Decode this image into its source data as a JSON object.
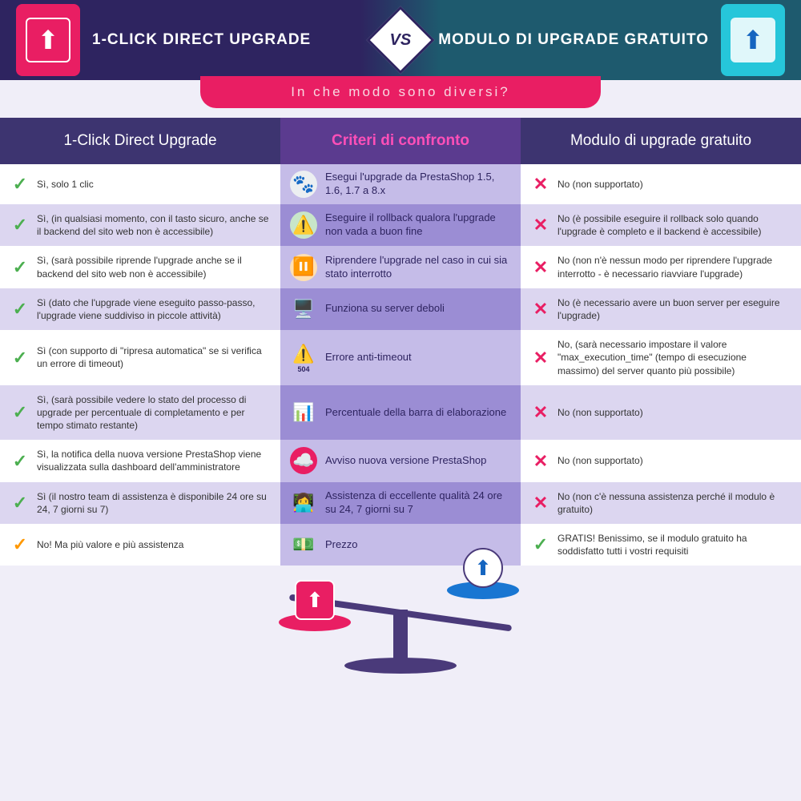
{
  "header": {
    "left_title": "1-CLICK DIRECT UPGRADE",
    "right_title": "MODULO DI UPGRADE GRATUITO",
    "vs": "VS"
  },
  "subtitle": "In che modo sono diversi?",
  "columns": {
    "left": "1-Click Direct Upgrade",
    "mid": "Criteri di confronto",
    "right": "Modulo di upgrade gratuito"
  },
  "rows": [
    {
      "left_icon": "check",
      "left": "Sì, solo 1 clic",
      "crit_emoji": "🐾",
      "crit_bg": "#eceff1",
      "crit": "Esegui l'upgrade da PrestaShop 1.5, 1.6, 1.7 a 8.x",
      "right_icon": "cross",
      "right": "No (non supportato)"
    },
    {
      "left_icon": "check",
      "left": "Sì, (in qualsiasi momento, con il tasto sicuro, anche se il backend del sito web non è accessibile)",
      "crit_emoji": "⚠️",
      "crit_bg": "#c8e6c9",
      "crit": "Eseguire il rollback qualora l'upgrade non vada a buon fine",
      "right_icon": "cross",
      "right": "No (è possibile eseguire il rollback solo quando l'upgrade è completo e il backend è accessibile)"
    },
    {
      "left_icon": "check",
      "left": "Sì, (sarà possibile riprende l'upgrade anche se il backend del sito web non è accessibile)",
      "crit_emoji": "⏸️",
      "crit_bg": "#ffe0b2",
      "crit": "Riprendere l'upgrade nel caso in cui sia stato interrotto",
      "right_icon": "cross",
      "right": "No (non n'è nessun modo per riprendere l'upgrade interrotto - è necessario riavviare l'upgrade)"
    },
    {
      "left_icon": "check",
      "left": "Sì (dato che l'upgrade viene eseguito passo-passo, l'upgrade viene suddiviso in piccole attività)",
      "crit_emoji": "🖥️",
      "crit_bg": "transparent",
      "crit": "Funziona su server deboli",
      "right_icon": "cross",
      "right": "No (è necessario avere un buon server per eseguire l'upgrade)"
    },
    {
      "left_icon": "check",
      "left": "Sì (con supporto di \"ripresa automatica\" se si verifica un errore di timeout)",
      "crit_emoji": "⚠️",
      "crit_bg": "transparent",
      "crit_sub": "504",
      "crit": "Errore anti-timeout",
      "right_icon": "cross",
      "right": "No, (sarà necessario impostare il valore \"max_execution_time\" (tempo di esecuzione massimo) del server quanto più possibile)"
    },
    {
      "left_icon": "check",
      "left": "Sì, (sarà possibile vedere lo stato del processo di upgrade per percentuale di completamento e per tempo stimato restante)",
      "crit_emoji": "📊",
      "crit_bg": "transparent",
      "crit": "Percentuale della barra di elaborazione",
      "right_icon": "cross",
      "right": "No (non supportato)"
    },
    {
      "left_icon": "check",
      "left": "Sì, la notifica della nuova versione PrestaShop viene visualizzata sulla dashboard dell'amministratore",
      "crit_emoji": "☁️",
      "crit_bg": "#e91e63",
      "crit": "Avviso nuova versione PrestaShop",
      "right_icon": "cross",
      "right": "No (non supportato)"
    },
    {
      "left_icon": "check",
      "left": "Sì (il nostro team di assistenza è disponibile 24 ore su 24, 7 giorni su 7)",
      "crit_emoji": "👩‍💻",
      "crit_bg": "transparent",
      "crit": "Assistenza di eccellente qualità 24 ore su 24, 7 giorni su 7",
      "right_icon": "cross",
      "right": "No (non c'è nessuna assistenza perché il modulo è gratuito)"
    },
    {
      "left_icon": "warn",
      "left": "No! Ma più valore e più assistenza",
      "crit_emoji": "💵",
      "crit_bg": "transparent",
      "crit": "Prezzo",
      "right_icon": "check",
      "right": "GRATIS! Benissimo, se il modulo gratuito ha soddisfatto tutti i vostri requisiti"
    }
  ],
  "colors": {
    "pink": "#e91e63",
    "teal": "#26c6da",
    "purple_dark": "#2e2460",
    "purple_header": "#3d3470",
    "purple_mid": "#5b3b8f",
    "green": "#4caf50",
    "orange": "#ff9800"
  }
}
